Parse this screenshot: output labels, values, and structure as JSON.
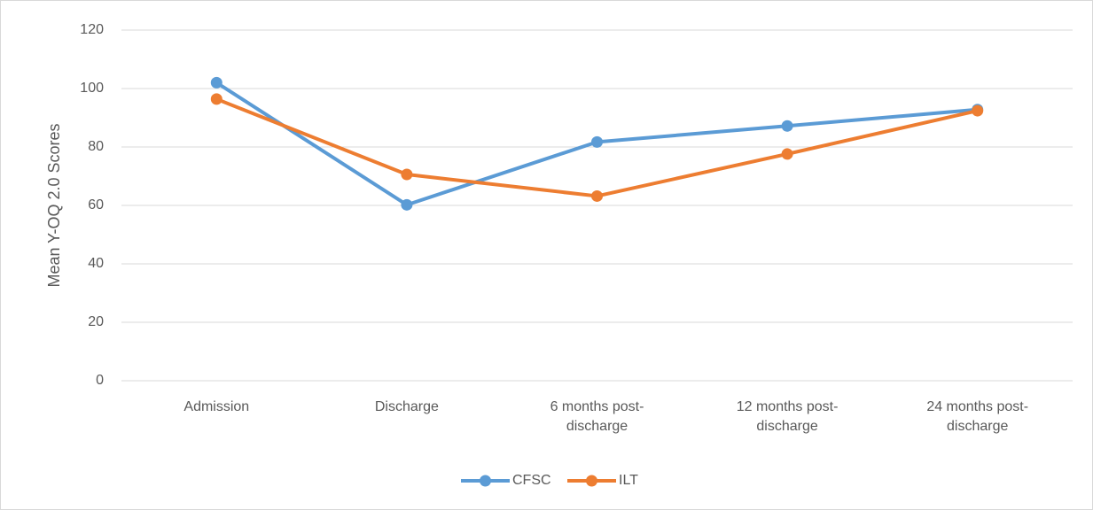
{
  "chart_data": {
    "type": "line",
    "y_label": "Mean Y-OQ 2.0 Scores",
    "categories": [
      "Admission",
      "Discharge",
      "6 months post-discharge",
      "12 months post-discharge",
      "24 months post-discharge"
    ],
    "series": [
      {
        "name": "CFSC",
        "color": "#5b9bd5",
        "values": [
          102,
          60.2,
          81.7,
          87.2,
          92.8
        ]
      },
      {
        "name": "ILT",
        "color": "#ed7d31",
        "values": [
          96.4,
          70.6,
          63.2,
          77.6,
          92.4
        ]
      }
    ],
    "ylim": [
      0,
      120
    ],
    "yticks": [
      0,
      20,
      40,
      60,
      80,
      100,
      120
    ],
    "grid": true,
    "legend": "bottom"
  }
}
